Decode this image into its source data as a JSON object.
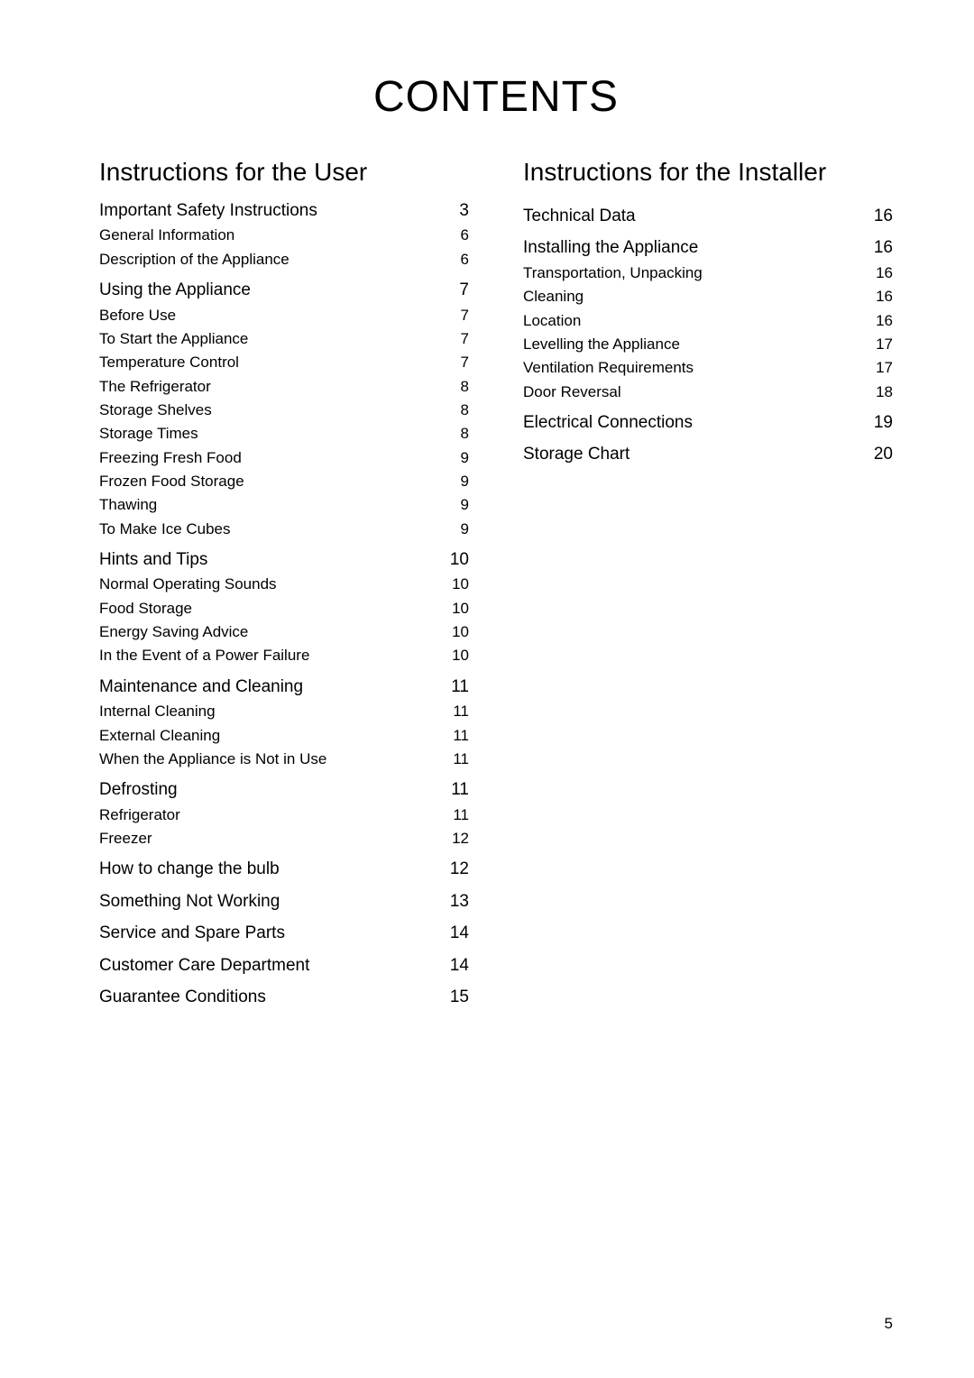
{
  "title": "CONTENTS",
  "page_number": "5",
  "left_column": {
    "heading": "Instructions for the User",
    "entries": [
      {
        "label": "Important Safety Instructions",
        "page": "3",
        "main": true
      },
      {
        "label": "General Information",
        "page": "6"
      },
      {
        "label": "Description of the Appliance",
        "page": "6"
      },
      {
        "label": "Using the Appliance",
        "page": "7",
        "main": true,
        "gap": true
      },
      {
        "label": "Before Use",
        "page": "7"
      },
      {
        "label": "To Start the Appliance",
        "page": "7"
      },
      {
        "label": "Temperature Control",
        "page": "7"
      },
      {
        "label": "The Refrigerator",
        "page": "8"
      },
      {
        "label": "Storage Shelves",
        "page": "8"
      },
      {
        "label": "Storage Times",
        "page": "8"
      },
      {
        "label": "Freezing Fresh Food",
        "page": "9"
      },
      {
        "label": "Frozen Food Storage",
        "page": "9"
      },
      {
        "label": "Thawing",
        "page": "9"
      },
      {
        "label": "To Make Ice Cubes",
        "page": "9"
      },
      {
        "label": "Hints and Tips",
        "page": "10",
        "main": true,
        "gap": true
      },
      {
        "label": "Normal Operating Sounds",
        "page": "10"
      },
      {
        "label": "Food Storage",
        "page": "10"
      },
      {
        "label": "Energy Saving Advice",
        "page": "10"
      },
      {
        "label": "In the Event of a Power Failure",
        "page": "10"
      },
      {
        "label": "Maintenance and Cleaning",
        "page": "11",
        "main": true,
        "gap": true
      },
      {
        "label": "Internal Cleaning",
        "page": "11"
      },
      {
        "label": "External Cleaning",
        "page": "11"
      },
      {
        "label": "When the Appliance is Not in Use",
        "page": "11"
      },
      {
        "label": "Defrosting",
        "page": "11",
        "main": true,
        "gap": true
      },
      {
        "label": "Refrigerator",
        "page": "11"
      },
      {
        "label": "Freezer",
        "page": "12"
      },
      {
        "label": "How to change the bulb",
        "page": "12",
        "main": true,
        "gap": true
      },
      {
        "label": "Something Not Working",
        "page": "13",
        "main": true,
        "gap": true
      },
      {
        "label": "Service and Spare Parts",
        "page": "14",
        "main": true,
        "gap": true
      },
      {
        "label": "Customer Care Department",
        "page": "14",
        "main": true,
        "gap": true
      },
      {
        "label": "Guarantee Conditions",
        "page": "15",
        "main": true,
        "gap": true
      }
    ]
  },
  "right_column": {
    "heading": "Instructions for the Installer",
    "entries": [
      {
        "label": "Technical Data",
        "page": "16",
        "main": true
      },
      {
        "label": "Installing the Appliance",
        "page": "16",
        "main": true,
        "gap": true
      },
      {
        "label": "Transportation, Unpacking",
        "page": "16"
      },
      {
        "label": "Cleaning",
        "page": "16"
      },
      {
        "label": "Location",
        "page": "16"
      },
      {
        "label": "Levelling the Appliance",
        "page": "17"
      },
      {
        "label": "Ventilation Requirements",
        "page": "17"
      },
      {
        "label": "Door Reversal",
        "page": "18"
      },
      {
        "label": "Electrical Connections",
        "page": "19",
        "main": true,
        "gap": true
      },
      {
        "label": "Storage Chart",
        "page": "20",
        "main": true,
        "gap": true
      }
    ]
  }
}
